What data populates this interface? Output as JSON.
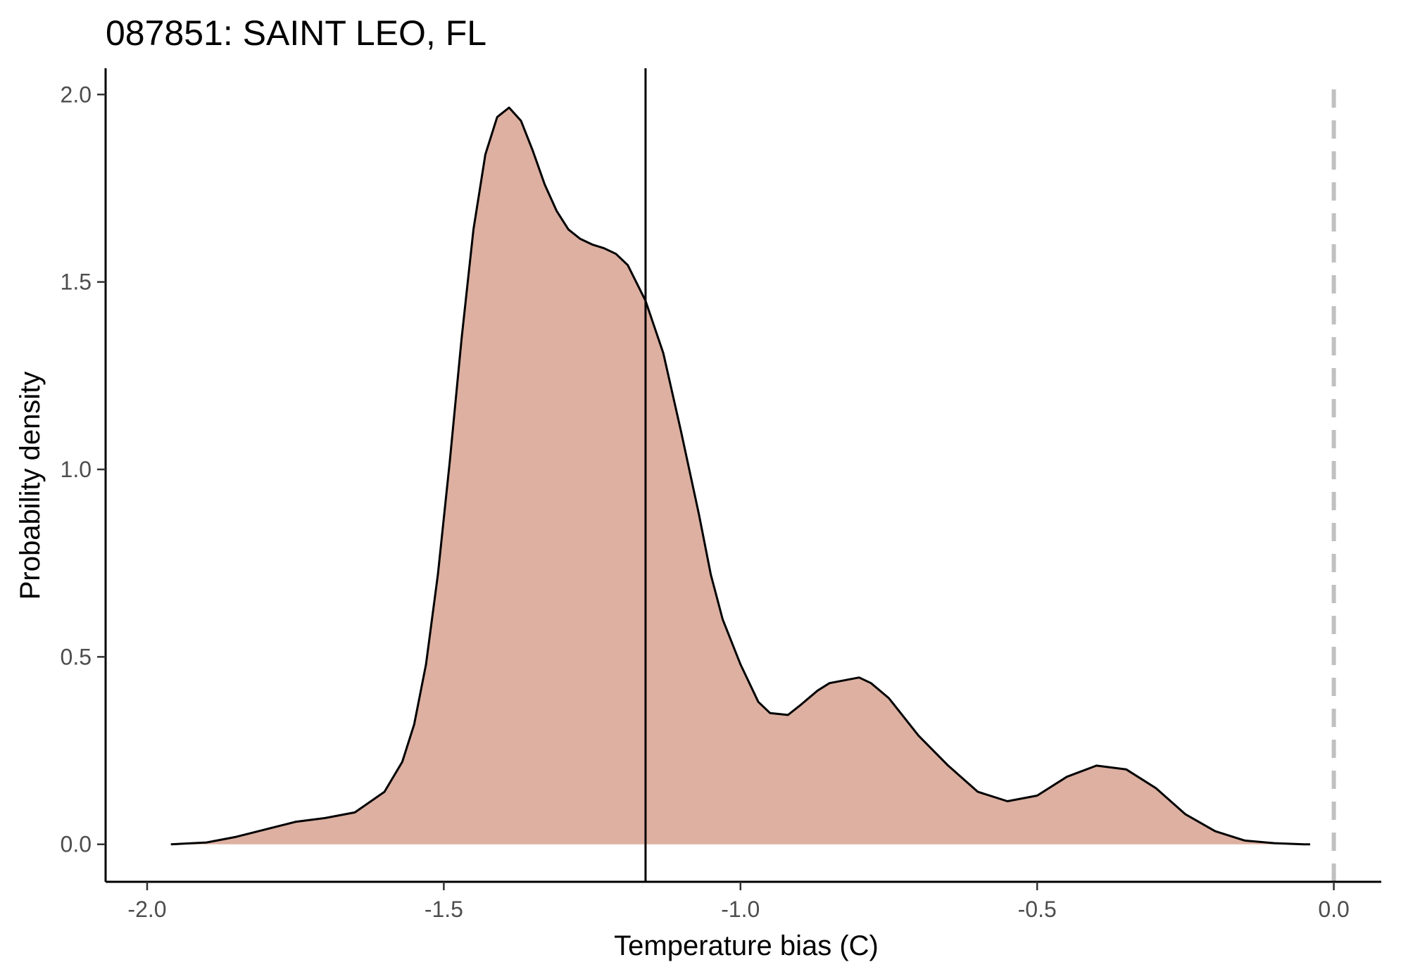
{
  "chart_data": {
    "type": "area",
    "title": "087851: SAINT LEO, FL",
    "xlabel": "Temperature bias (C)",
    "ylabel": "Probability density",
    "xlim": [
      -2.07,
      0.08
    ],
    "ylim": [
      -0.1,
      2.07
    ],
    "x_ticks": [
      -2.0,
      -1.5,
      -1.0,
      -0.5,
      0.0
    ],
    "x_tick_labels": [
      "-2.0",
      "-1.5",
      "-1.0",
      "-0.5",
      "0.0"
    ],
    "y_ticks": [
      0.0,
      0.5,
      1.0,
      1.5,
      2.0
    ],
    "y_tick_labels": [
      "0.0",
      "0.5",
      "1.0",
      "1.5",
      "2.0"
    ],
    "grid": false,
    "legend": "none",
    "fill_color": "#ddb0a2",
    "line_color": "#000000",
    "mean_line_x": -1.16,
    "reference_line_x": 0.0,
    "reference_line_color": "#c0c0c0",
    "series": [
      {
        "x": [
          -1.96,
          -1.9,
          -1.85,
          -1.8,
          -1.75,
          -1.7,
          -1.65,
          -1.6,
          -1.57,
          -1.55,
          -1.53,
          -1.51,
          -1.49,
          -1.47,
          -1.45,
          -1.43,
          -1.41,
          -1.39,
          -1.37,
          -1.35,
          -1.33,
          -1.31,
          -1.29,
          -1.27,
          -1.25,
          -1.23,
          -1.21,
          -1.19,
          -1.16,
          -1.13,
          -1.1,
          -1.07,
          -1.05,
          -1.03,
          -1.0,
          -0.97,
          -0.95,
          -0.92,
          -0.9,
          -0.87,
          -0.85,
          -0.8,
          -0.78,
          -0.75,
          -0.72,
          -0.7,
          -0.65,
          -0.6,
          -0.55,
          -0.5,
          -0.45,
          -0.4,
          -0.35,
          -0.3,
          -0.25,
          -0.2,
          -0.15,
          -0.1,
          -0.05,
          -0.04
        ],
        "y": [
          0.0,
          0.005,
          0.02,
          0.04,
          0.06,
          0.07,
          0.085,
          0.14,
          0.22,
          0.32,
          0.48,
          0.72,
          1.02,
          1.35,
          1.64,
          1.84,
          1.94,
          1.965,
          1.93,
          1.85,
          1.76,
          1.69,
          1.64,
          1.615,
          1.6,
          1.59,
          1.575,
          1.545,
          1.45,
          1.31,
          1.1,
          0.88,
          0.72,
          0.6,
          0.48,
          0.38,
          0.35,
          0.345,
          0.37,
          0.41,
          0.43,
          0.445,
          0.43,
          0.39,
          0.33,
          0.29,
          0.21,
          0.14,
          0.115,
          0.13,
          0.18,
          0.21,
          0.2,
          0.15,
          0.08,
          0.035,
          0.01,
          0.003,
          0.0,
          0.0
        ]
      }
    ]
  }
}
